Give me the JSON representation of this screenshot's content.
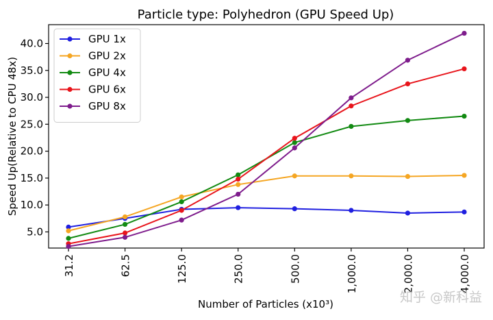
{
  "chart_data": {
    "type": "line",
    "title": "Particle type: Polyhedron (GPU Speed Up)",
    "xlabel": "Number of Particles (x10³)",
    "ylabel": "Speed Up(Relative to CPU 48x)",
    "categories": [
      "31.2",
      "62.5",
      "125.0",
      "250.0",
      "500.0",
      "1,000.0",
      "2,000.0",
      "4,000.0"
    ],
    "ylim": [
      2.0,
      43.5
    ],
    "yticks": [
      "5.0",
      "10.0",
      "15.0",
      "20.0",
      "25.0",
      "30.0",
      "35.0",
      "40.0"
    ],
    "ytick_values": [
      5,
      10,
      15,
      20,
      25,
      30,
      35,
      40
    ],
    "grid": false,
    "legend_position": "top-left",
    "series": [
      {
        "name": "GPU 1x",
        "color": "#1f1fe0",
        "values": [
          5.9,
          7.5,
          9.2,
          9.5,
          9.3,
          9.0,
          8.5,
          8.7
        ]
      },
      {
        "name": "GPU 2x",
        "color": "#f5a623",
        "values": [
          5.2,
          7.8,
          11.5,
          13.8,
          15.4,
          15.4,
          15.3,
          15.5
        ]
      },
      {
        "name": "GPU 4x",
        "color": "#128a12",
        "values": [
          3.8,
          6.4,
          10.6,
          15.6,
          21.6,
          24.6,
          25.7,
          26.5
        ]
      },
      {
        "name": "GPU 6x",
        "color": "#e8141b",
        "values": [
          2.8,
          4.8,
          9.0,
          14.8,
          22.4,
          28.4,
          32.5,
          35.3
        ]
      },
      {
        "name": "GPU 8x",
        "color": "#7e1c8c",
        "values": [
          2.3,
          4.0,
          7.2,
          12.0,
          20.6,
          29.9,
          36.9,
          41.9
        ]
      }
    ]
  },
  "watermark": "知乎 @新科益"
}
